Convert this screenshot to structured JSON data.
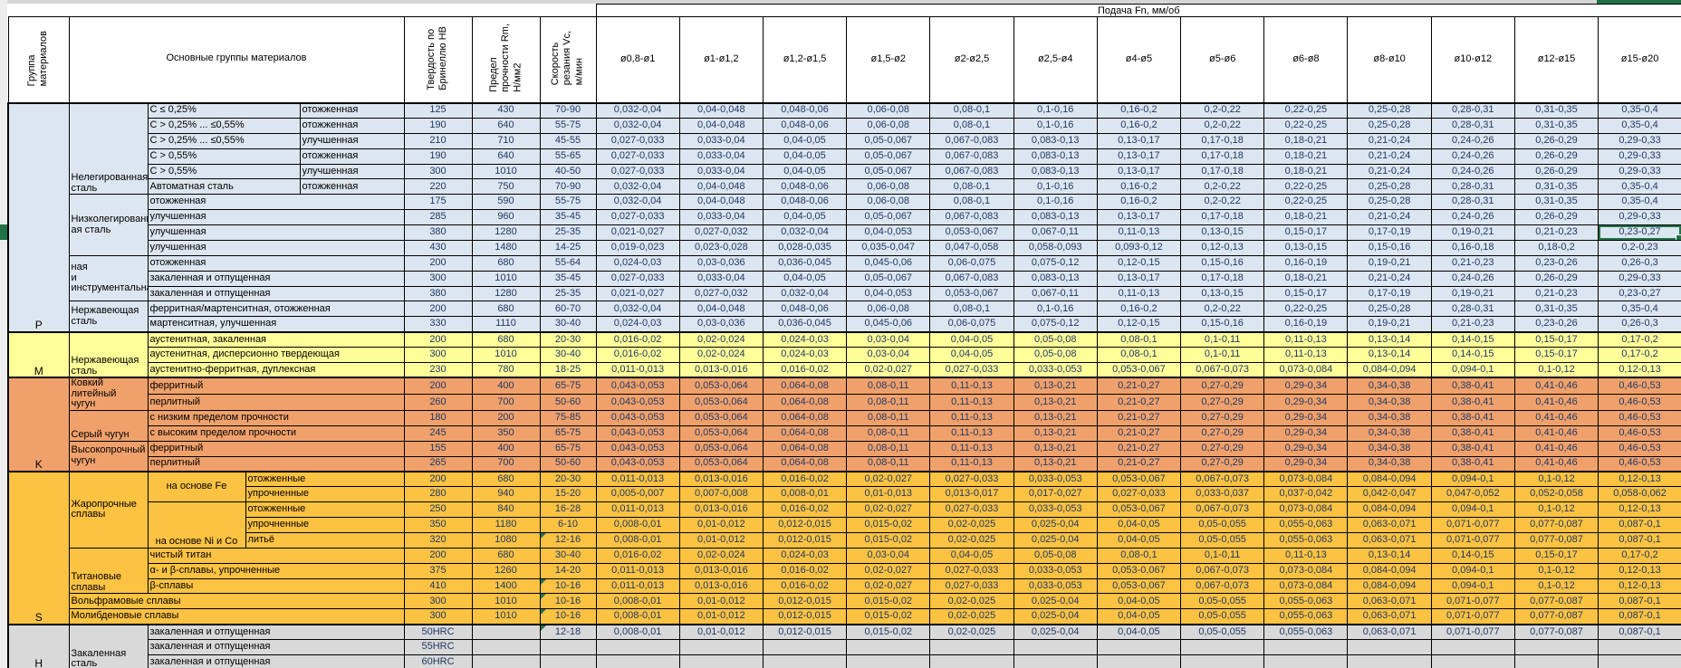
{
  "header": {
    "group_col": "Группа\nматериалов",
    "materials_col": "Основные группы материалов",
    "hardness_col": "Твердость по\nБринеллю HB",
    "strength_col": "Предел\nпрочности Rm,\nН/мм2",
    "speed_col": "Скорость\nрезания Vc,\nм/мин",
    "feed_band": "Подача Fn, мм/об",
    "feed_cols": [
      "ø0,8-ø1",
      "ø1-ø1,2",
      "ø1,2-ø1,5",
      "ø1,5-ø2",
      "ø2-ø2,5",
      "ø2,5-ø4",
      "ø4-ø5",
      "ø5-ø6",
      "ø6-ø8",
      "ø8-ø10",
      "ø10-ø12",
      "ø12-ø15",
      "ø15-ø20"
    ]
  },
  "colors": {
    "section_P": "#dce6f1",
    "section_M": "#ffff99",
    "section_K": "#f0a16b",
    "section_S": "#fcc242",
    "section_H": "#d9d9d9",
    "selection_green": "#217346",
    "value_text": "#1f3864"
  },
  "feed_patterns": {
    "A": [
      "0,032-0,04",
      "0,04-0,048",
      "0,048-0,06",
      "0,06-0,08",
      "0,08-0,1",
      "0,1-0,16",
      "0,16-0,2",
      "0,2-0,22",
      "0,22-0,25",
      "0,25-0,28",
      "0,28-0,31",
      "0,31-0,35",
      "0,35-0,4"
    ],
    "B": [
      "0,027-0,033",
      "0,033-0,04",
      "0,04-0,05",
      "0,05-0,067",
      "0,067-0,083",
      "0,083-0,13",
      "0,13-0,17",
      "0,17-0,18",
      "0,18-0,21",
      "0,21-0,24",
      "0,24-0,26",
      "0,26-0,29",
      "0,29-0,33"
    ],
    "C": [
      "0,021-0,027",
      "0,027-0,032",
      "0,032-0,04",
      "0,04-0,053",
      "0,053-0,067",
      "0,067-0,11",
      "0,11-0,13",
      "0,13-0,15",
      "0,15-0,17",
      "0,17-0,19",
      "0,19-0,21",
      "0,21-0,23",
      "0,23-0,27"
    ],
    "D": [
      "0,019-0,023",
      "0,023-0,028",
      "0,028-0,035",
      "0,035-0,047",
      "0,047-0,058",
      "0,058-0,093",
      "0,093-0,12",
      "0,12-0,13",
      "0,13-0,15",
      "0,15-0,16",
      "0,16-0,18",
      "0,18-0,2",
      "0,2-0,23"
    ],
    "E": [
      "0,024-0,03",
      "0,03-0,036",
      "0,036-0,045",
      "0,045-0,06",
      "0,06-0,075",
      "0,075-0,12",
      "0,12-0,15",
      "0,15-0,16",
      "0,16-0,19",
      "0,19-0,21",
      "0,21-0,23",
      "0,23-0,26",
      "0,26-0,3"
    ],
    "M": [
      "0,016-0,02",
      "0,02-0,024",
      "0,024-0,03",
      "0,03-0,04",
      "0,04-0,05",
      "0,05-0,08",
      "0,08-0,1",
      "0,1-0,11",
      "0,11-0,13",
      "0,13-0,14",
      "0,14-0,15",
      "0,15-0,17",
      "0,17-0,2"
    ],
    "N": [
      "0,011-0,013",
      "0,013-0,016",
      "0,016-0,02",
      "0,02-0,027",
      "0,027-0,033",
      "0,033-0,053",
      "0,053-0,067",
      "0,067-0,073",
      "0,073-0,084",
      "0,084-0,094",
      "0,094-0,1",
      "0,1-0,12",
      "0,12-0,13"
    ],
    "K": [
      "0,043-0,053",
      "0,053-0,064",
      "0,064-0,08",
      "0,08-0,11",
      "0,11-0,13",
      "0,13-0,21",
      "0,21-0,27",
      "0,27-0,29",
      "0,29-0,34",
      "0,34-0,38",
      "0,38-0,41",
      "0,41-0,46",
      "0,46-0,53"
    ],
    "F": [
      "0,005-0,007",
      "0,007-0,008",
      "0,008-0,01",
      "0,01-0,013",
      "0,013-0,017",
      "0,017-0,027",
      "0,027-0,033",
      "0,033-0,037",
      "0,037-0,042",
      "0,042-0,047",
      "0,047-0,052",
      "0,052-0,058",
      "0,058-0,062"
    ],
    "W": [
      "0,008-0,01",
      "0,01-0,012",
      "0,012-0,015",
      "0,015-0,02",
      "0,02-0,025",
      "0,025-0,04",
      "0,04-0,05",
      "0,05-0,055",
      "0,055-0,063",
      "0,063-0,071",
      "0,071-0,077",
      "0,077-0,087",
      "0,087-0,1"
    ],
    "EMPTY": [
      "",
      "",
      "",
      "",
      "",
      "",
      "",
      "",
      "",
      "",
      "",
      "",
      ""
    ]
  },
  "selection": {
    "section": "P",
    "row_label": "улучшенная 380/1280",
    "feed_col_label": "ø15-ø20",
    "value": "0,23-0,27"
  },
  "sections": [
    {
      "code": "P",
      "color": "#dce6f1",
      "rows": [
        {
          "cells": [
            {
              "t": "Нелегированная\nсталь",
              "rs": 6,
              "va": "bottom"
            },
            {
              "t": "C ≤ 0,25%",
              "cs": 2
            },
            {
              "t": "отожженная"
            }
          ],
          "hb": "125",
          "rm": "430",
          "vc": "70-90",
          "pat": "A"
        },
        {
          "cells": [
            {
              "t": "C > 0,25% ... ≤0,55%",
              "cs": 2
            },
            {
              "t": "отожженная"
            }
          ],
          "hb": "190",
          "rm": "640",
          "vc": "55-75",
          "pat": "A"
        },
        {
          "cells": [
            {
              "t": "C > 0,25% ... ≤0,55%",
              "cs": 2
            },
            {
              "t": "улучшенная"
            }
          ],
          "hb": "210",
          "rm": "710",
          "vc": "45-55",
          "pat": "B"
        },
        {
          "cells": [
            {
              "t": "C > 0,55%",
              "cs": 2
            },
            {
              "t": "отожженная"
            }
          ],
          "hb": "190",
          "rm": "640",
          "vc": "55-65",
          "pat": "B"
        },
        {
          "cells": [
            {
              "t": "C > 0,55%",
              "cs": 2
            },
            {
              "t": "улучшенная"
            }
          ],
          "hb": "300",
          "rm": "1010",
          "vc": "40-50",
          "pat": "B"
        },
        {
          "cells": [
            {
              "t": "Автоматная сталь",
              "cs": 2
            },
            {
              "t": "отожженная"
            }
          ],
          "hb": "220",
          "rm": "750",
          "vc": "70-90",
          "pat": "A"
        },
        {
          "cells": [
            {
              "t": "Низколегированн\nая сталь",
              "rs": 4
            },
            {
              "t": "отожженная",
              "cs": 3
            }
          ],
          "hb": "175",
          "rm": "590",
          "vc": "55-75",
          "pat": "A"
        },
        {
          "cells": [
            {
              "t": "улучшенная",
              "cs": 3
            }
          ],
          "hb": "285",
          "rm": "960",
          "vc": "35-45",
          "pat": "B"
        },
        {
          "cells": [
            {
              "t": "улучшенная",
              "cs": 3
            }
          ],
          "hb": "380",
          "rm": "1280",
          "vc": "25-35",
          "pat": "C",
          "sel": 12
        },
        {
          "cells": [
            {
              "t": "улучшенная",
              "cs": 3
            }
          ],
          "hb": "430",
          "rm": "1480",
          "vc": "14-25",
          "pat": "D"
        },
        {
          "cells": [
            {
              "t": "ная\nи\nинструментальна",
              "rs": 3
            },
            {
              "t": "отожженная",
              "cs": 3
            }
          ],
          "hb": "200",
          "rm": "680",
          "vc": "55-64",
          "pat": "E"
        },
        {
          "cells": [
            {
              "t": "закаленная и отпущенная",
              "cs": 3
            }
          ],
          "hb": "300",
          "rm": "1010",
          "vc": "35-45",
          "pat": "B"
        },
        {
          "cells": [
            {
              "t": "закаленная и отпущенная",
              "cs": 3
            }
          ],
          "hb": "380",
          "rm": "1280",
          "vc": "25-35",
          "pat": "C"
        },
        {
          "cells": [
            {
              "t": "Нержавеющая\nсталь",
              "rs": 2
            },
            {
              "t": "ферритная/мартенситная, отожженная",
              "cs": 3
            }
          ],
          "hb": "200",
          "rm": "680",
          "vc": "60-70",
          "pat": "A"
        },
        {
          "cells": [
            {
              "t": "мартенситная, улучшенная",
              "cs": 3
            }
          ],
          "hb": "330",
          "rm": "1110",
          "vc": "30-40",
          "pat": "E"
        }
      ]
    },
    {
      "code": "M",
      "color": "#ffff99",
      "rows": [
        {
          "cells": [
            {
              "t": "Нержавеющая\nсталь",
              "rs": 3,
              "va": "bottom"
            },
            {
              "t": "аустенитная, закаленная",
              "cs": 3
            }
          ],
          "hb": "200",
          "rm": "680",
          "vc": "20-30",
          "pat": "M"
        },
        {
          "cells": [
            {
              "t": "аустенитная, дисперсионно твердеющая",
              "cs": 3
            }
          ],
          "hb": "300",
          "rm": "1010",
          "vc": "30-40",
          "pat": "M"
        },
        {
          "cells": [
            {
              "t": "аустенитно-ферритная, дуплексная",
              "cs": 3
            }
          ],
          "hb": "230",
          "rm": "780",
          "vc": "18-25",
          "pat": "N"
        }
      ]
    },
    {
      "code": "K",
      "color": "#f0a16b",
      "rows": [
        {
          "cells": [
            {
              "t": "Ковкий литейный\nчугун",
              "rs": 2
            },
            {
              "t": "ферритный",
              "cs": 3
            }
          ],
          "hb": "200",
          "rm": "400",
          "vc": "65-75",
          "pat": "K"
        },
        {
          "cells": [
            {
              "t": "перлитный",
              "cs": 3
            }
          ],
          "hb": "260",
          "rm": "700",
          "vc": "50-60",
          "pat": "K"
        },
        {
          "cells": [
            {
              "t": "Серый чугун",
              "rs": 2,
              "va": "bottom"
            },
            {
              "t": "с низким пределом прочности",
              "cs": 3
            }
          ],
          "hb": "180",
          "rm": "200",
          "vc": "75-85",
          "pat": "K"
        },
        {
          "cells": [
            {
              "t": "с высоким пределом прочности",
              "cs": 3
            }
          ],
          "hb": "245",
          "rm": "350",
          "vc": "65-75",
          "pat": "K"
        },
        {
          "cells": [
            {
              "t": "Высокопрочный\nчугун",
              "rs": 2
            },
            {
              "t": "ферритный",
              "cs": 3
            }
          ],
          "hb": "155",
          "rm": "400",
          "vc": "65-75",
          "pat": "K"
        },
        {
          "cells": [
            {
              "t": "перлитный",
              "cs": 3
            }
          ],
          "hb": "265",
          "rm": "700",
          "vc": "50-60",
          "pat": "K"
        }
      ]
    },
    {
      "code": "S",
      "color": "#fcc242",
      "rows": [
        {
          "cells": [
            {
              "t": "Жаропрочные\nсплавы",
              "rs": 5
            },
            {
              "t": "на основе Fe",
              "rs": 2,
              "ha": "center"
            },
            {
              "t": "отожженные",
              "cs": 2
            }
          ],
          "hb": "200",
          "rm": "680",
          "vc": "20-30",
          "pat": "N"
        },
        {
          "cells": [
            {
              "t": "упрочненные",
              "cs": 2
            }
          ],
          "hb": "280",
          "rm": "940",
          "vc": "15-20",
          "pat": "F"
        },
        {
          "cells": [
            {
              "t": "на основе Ni и Co",
              "rs": 3,
              "ha": "center",
              "va": "bottom"
            },
            {
              "t": "отожженные",
              "cs": 2
            }
          ],
          "hb": "250",
          "rm": "840",
          "vc": "16-28",
          "pat": "N"
        },
        {
          "cells": [
            {
              "t": "упрочненные",
              "cs": 2
            }
          ],
          "hb": "350",
          "rm": "1180",
          "vc": "6-10",
          "pat": "W"
        },
        {
          "cells": [
            {
              "t": "литьё",
              "cs": 2
            }
          ],
          "hb": "320",
          "rm": "1080",
          "vc": "12-16",
          "flag": true,
          "pat": "W"
        },
        {
          "cells": [
            {
              "t": "Титановые\nсплавы",
              "rs": 3,
              "va": "bottom"
            },
            {
              "t": "чистый титан",
              "cs": 3
            }
          ],
          "hb": "200",
          "rm": "680",
          "vc": "30-40",
          "pat": "M"
        },
        {
          "cells": [
            {
              "t": "α- и β-сплавы, упрочненные",
              "cs": 3
            }
          ],
          "hb": "375",
          "rm": "1260",
          "vc": "14-20",
          "pat": "N"
        },
        {
          "cells": [
            {
              "t": "β-сплавы",
              "cs": 3
            }
          ],
          "hb": "410",
          "rm": "1400",
          "vc": "10-16",
          "flag": true,
          "pat": "N"
        },
        {
          "cells": [
            {
              "t": "Вольфрамовые сплавы",
              "cs": 4
            }
          ],
          "hb": "300",
          "rm": "1010",
          "vc": "10-16",
          "flag": true,
          "pat": "W"
        },
        {
          "cells": [
            {
              "t": "Молибденовые сплавы",
              "cs": 4
            }
          ],
          "hb": "300",
          "rm": "1010",
          "vc": "10-16",
          "flag": true,
          "pat": "W"
        }
      ]
    },
    {
      "code": "H",
      "color": "#d9d9d9",
      "rows": [
        {
          "cells": [
            {
              "t": "Закаленная\nсталь",
              "rs": 3,
              "va": "bottom"
            },
            {
              "t": "закаленная и отпущенная",
              "cs": 3
            }
          ],
          "hb": "50HRC",
          "rm": "",
          "vc": "12-18",
          "flag": true,
          "pat": "W"
        },
        {
          "cells": [
            {
              "t": "закаленная и отпущенная",
              "cs": 3
            }
          ],
          "hb": "55HRC",
          "rm": "",
          "vc": "",
          "pat": "EMPTY"
        },
        {
          "cells": [
            {
              "t": "закаленная и отпущенная",
              "cs": 3
            }
          ],
          "hb": "60HRC",
          "rm": "",
          "vc": "",
          "pat": "EMPTY"
        }
      ]
    }
  ]
}
